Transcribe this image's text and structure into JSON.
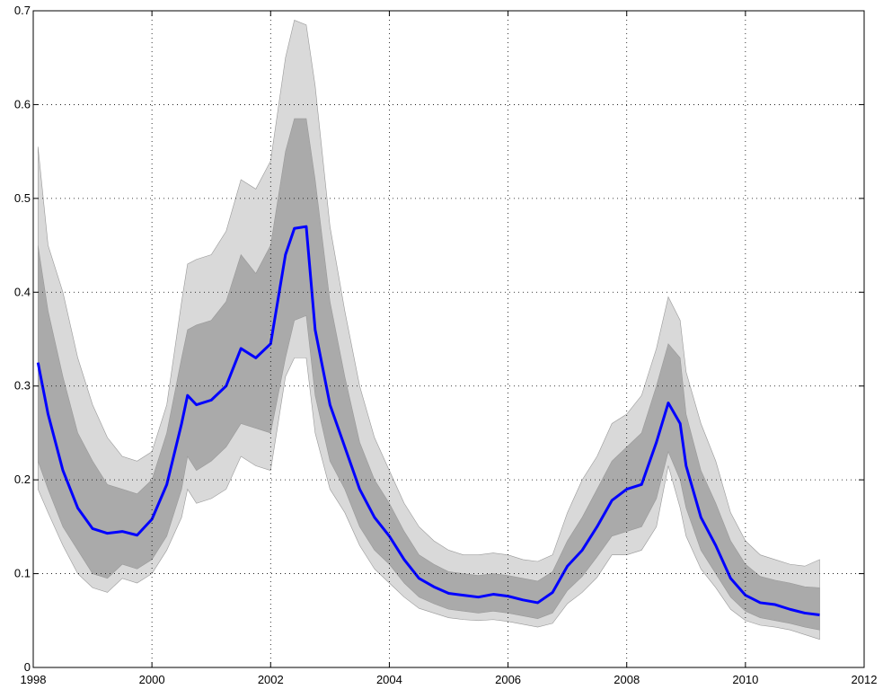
{
  "chart_data": {
    "type": "line",
    "x": [
      1998.08,
      1998.25,
      1998.5,
      1998.75,
      1999.0,
      1999.25,
      1999.5,
      1999.75,
      2000.0,
      2000.25,
      2000.5,
      2000.6,
      2000.75,
      2001.0,
      2001.25,
      2001.5,
      2001.75,
      2002.0,
      2002.25,
      2002.4,
      2002.6,
      2002.75,
      2003.0,
      2003.25,
      2003.5,
      2003.75,
      2004.0,
      2004.25,
      2004.5,
      2004.75,
      2005.0,
      2005.25,
      2005.5,
      2005.75,
      2006.0,
      2006.25,
      2006.5,
      2006.75,
      2007.0,
      2007.25,
      2007.5,
      2007.75,
      2008.0,
      2008.25,
      2008.5,
      2008.7,
      2008.9,
      2009.0,
      2009.25,
      2009.5,
      2009.75,
      2010.0,
      2010.25,
      2010.5,
      2010.75,
      2011.0,
      2011.25
    ],
    "series": [
      {
        "color": "#d9d9d9",
        "values": [
          0.19,
          0.165,
          0.13,
          0.1,
          0.085,
          0.08,
          0.095,
          0.09,
          0.1,
          0.125,
          0.16,
          0.19,
          0.175,
          0.18,
          0.19,
          0.225,
          0.215,
          0.21,
          0.31,
          0.33,
          0.33,
          0.25,
          0.19,
          0.165,
          0.13,
          0.105,
          0.09,
          0.075,
          0.063,
          0.058,
          0.053,
          0.051,
          0.05,
          0.051,
          0.049,
          0.046,
          0.043,
          0.047,
          0.068,
          0.08,
          0.096,
          0.12,
          0.12,
          0.125,
          0.15,
          0.215,
          0.17,
          0.14,
          0.105,
          0.085,
          0.062,
          0.05,
          0.045,
          0.043,
          0.04,
          0.035,
          0.03
        ]
      },
      {
        "color": "#d9d9d9",
        "values": [
          0.555,
          0.45,
          0.4,
          0.33,
          0.28,
          0.245,
          0.225,
          0.22,
          0.23,
          0.28,
          0.39,
          0.43,
          0.435,
          0.44,
          0.465,
          0.52,
          0.51,
          0.54,
          0.65,
          0.69,
          0.685,
          0.62,
          0.47,
          0.38,
          0.3,
          0.245,
          0.21,
          0.175,
          0.15,
          0.135,
          0.125,
          0.12,
          0.12,
          0.122,
          0.12,
          0.115,
          0.113,
          0.12,
          0.165,
          0.2,
          0.225,
          0.26,
          0.27,
          0.29,
          0.34,
          0.395,
          0.37,
          0.315,
          0.26,
          0.22,
          0.165,
          0.135,
          0.12,
          0.115,
          0.11,
          0.108,
          0.115
        ]
      },
      {
        "color": "#aaaaaa",
        "values": [
          0.22,
          0.19,
          0.15,
          0.125,
          0.1,
          0.095,
          0.11,
          0.105,
          0.115,
          0.14,
          0.19,
          0.225,
          0.21,
          0.22,
          0.235,
          0.26,
          0.255,
          0.25,
          0.33,
          0.37,
          0.375,
          0.29,
          0.22,
          0.19,
          0.15,
          0.125,
          0.11,
          0.09,
          0.075,
          0.068,
          0.062,
          0.06,
          0.058,
          0.06,
          0.058,
          0.055,
          0.052,
          0.058,
          0.082,
          0.097,
          0.118,
          0.14,
          0.145,
          0.15,
          0.18,
          0.23,
          0.2,
          0.17,
          0.125,
          0.1,
          0.075,
          0.06,
          0.053,
          0.05,
          0.047,
          0.043,
          0.04
        ]
      },
      {
        "color": "#aaaaaa",
        "values": [
          0.45,
          0.38,
          0.31,
          0.25,
          0.22,
          0.195,
          0.19,
          0.185,
          0.2,
          0.25,
          0.33,
          0.36,
          0.365,
          0.37,
          0.39,
          0.44,
          0.42,
          0.45,
          0.55,
          0.585,
          0.585,
          0.52,
          0.39,
          0.31,
          0.24,
          0.2,
          0.175,
          0.145,
          0.12,
          0.11,
          0.102,
          0.1,
          0.098,
          0.1,
          0.098,
          0.095,
          0.092,
          0.102,
          0.135,
          0.16,
          0.19,
          0.22,
          0.235,
          0.25,
          0.3,
          0.345,
          0.33,
          0.27,
          0.21,
          0.175,
          0.135,
          0.11,
          0.097,
          0.093,
          0.09,
          0.086,
          0.085
        ]
      },
      {
        "color": "#0000ff",
        "values": [
          0.325,
          0.27,
          0.21,
          0.17,
          0.148,
          0.143,
          0.145,
          0.141,
          0.158,
          0.195,
          0.26,
          0.29,
          0.28,
          0.285,
          0.3,
          0.34,
          0.33,
          0.345,
          0.44,
          0.468,
          0.47,
          0.36,
          0.28,
          0.235,
          0.19,
          0.16,
          0.14,
          0.115,
          0.095,
          0.086,
          0.079,
          0.077,
          0.075,
          0.078,
          0.076,
          0.072,
          0.069,
          0.08,
          0.108,
          0.125,
          0.15,
          0.178,
          0.19,
          0.195,
          0.24,
          0.282,
          0.26,
          0.215,
          0.16,
          0.13,
          0.095,
          0.077,
          0.069,
          0.067,
          0.062,
          0.058,
          0.056
        ]
      }
    ],
    "xlim": [
      1998,
      2012
    ],
    "xticks": [
      1998,
      2000,
      2002,
      2004,
      2006,
      2008,
      2010,
      2012
    ],
    "ylim": [
      0,
      0.7
    ],
    "yticks": [
      0,
      0.1,
      0.2,
      0.3,
      0.4,
      0.5,
      0.6,
      0.7
    ],
    "grid": true
  }
}
